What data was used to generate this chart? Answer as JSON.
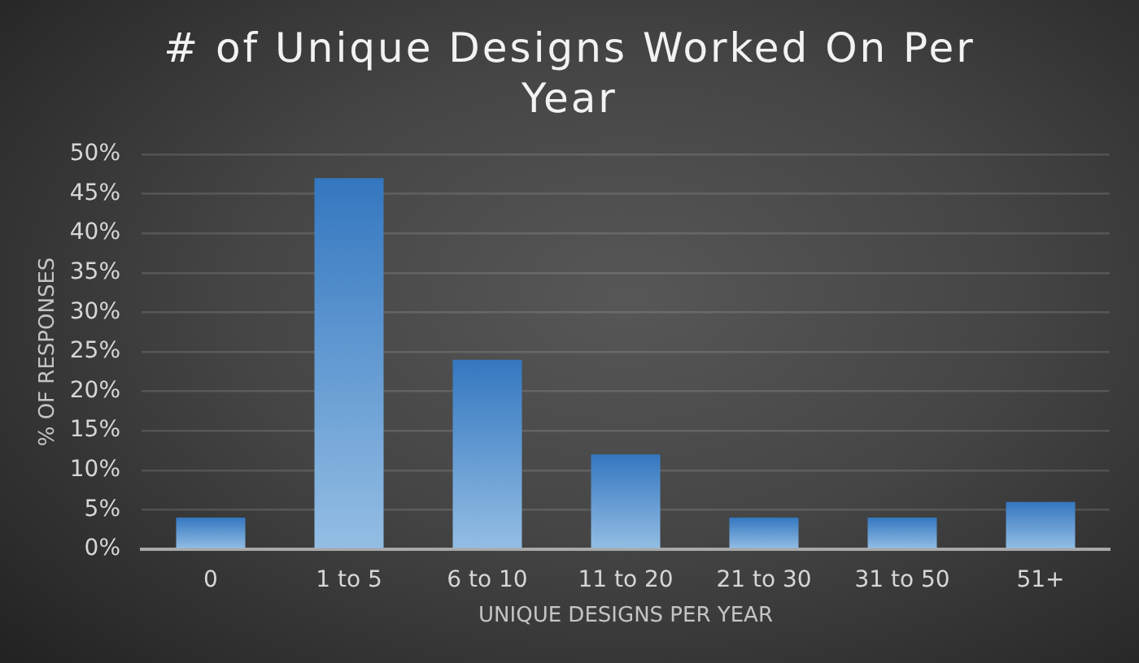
{
  "chart_data": {
    "type": "bar",
    "title": "# of Unique Designs Worked On Per Year",
    "xlabel": "UNIQUE DESIGNS PER YEAR",
    "ylabel": "% OF RESPONSES",
    "categories": [
      "0",
      "1 to 5",
      "6 to 10",
      "11 to 20",
      "21 to 30",
      "31 to 50",
      "51+"
    ],
    "values": [
      4,
      47,
      24,
      12,
      4,
      4,
      6
    ],
    "color": "#5b9bd5",
    "ylim": [
      0,
      50
    ],
    "yticks": [
      {
        "value": 0,
        "label": "0%"
      },
      {
        "value": 5,
        "label": "5%"
      },
      {
        "value": 10,
        "label": "10%"
      },
      {
        "value": 15,
        "label": "15%"
      },
      {
        "value": 20,
        "label": "20%"
      },
      {
        "value": 25,
        "label": "25%"
      },
      {
        "value": 30,
        "label": "30%"
      },
      {
        "value": 35,
        "label": "35%"
      },
      {
        "value": 40,
        "label": "40%"
      },
      {
        "value": 45,
        "label": "45%"
      },
      {
        "value": 50,
        "label": "50%"
      }
    ],
    "grid": "y",
    "legend": false
  }
}
